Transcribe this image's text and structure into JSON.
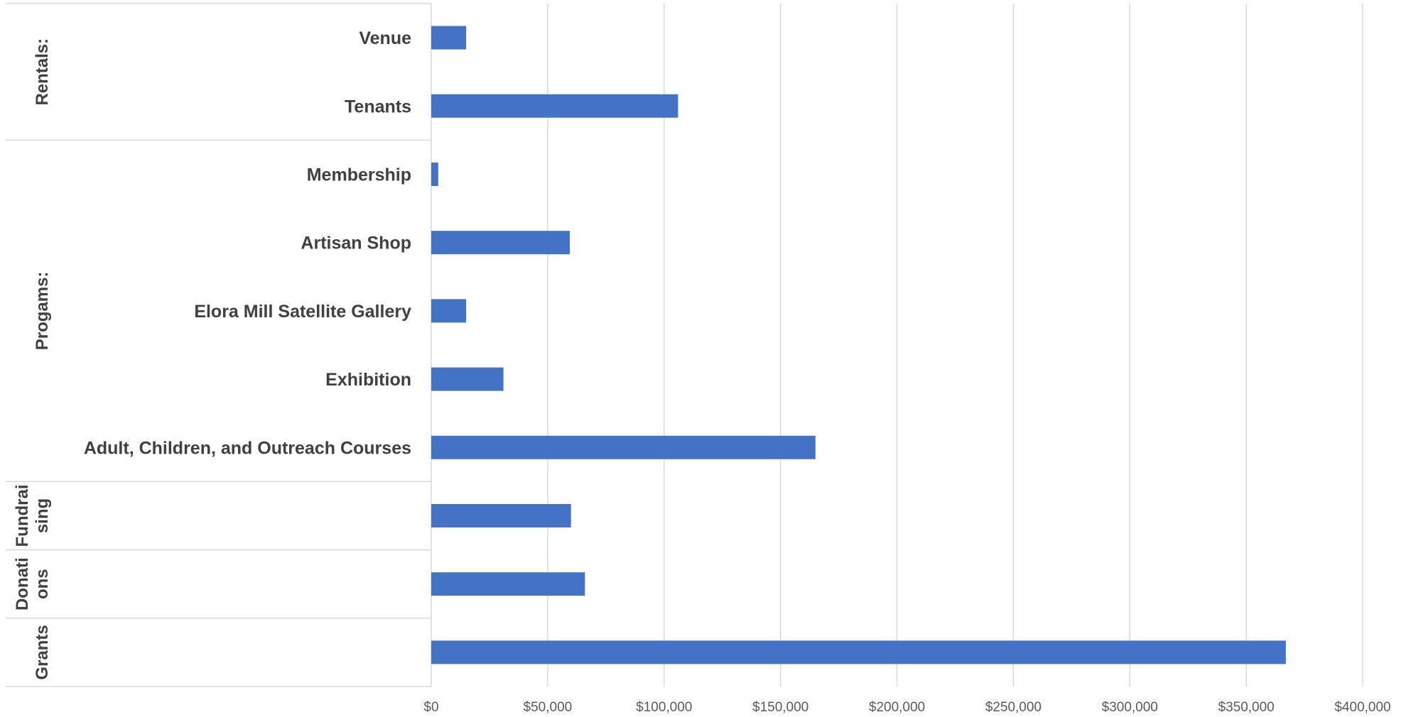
{
  "chart_data": {
    "type": "bar",
    "orientation": "horizontal",
    "title": "",
    "xlabel": "",
    "ylabel": "",
    "xlim": [
      0,
      400000
    ],
    "grid": true,
    "legend": "none",
    "color": "#4472C4",
    "x_ticks": [
      "$0",
      "$50,000",
      "$100,000",
      "$150,000",
      "$200,000",
      "$250,000",
      "$300,000",
      "$350,000",
      "$400,000"
    ],
    "groups": [
      {
        "label": "Rentals:",
        "label_lines": [
          "Rentals:"
        ],
        "items": [
          {
            "label": "Venue",
            "value": 15000
          },
          {
            "label": "Tenants",
            "value": 106000
          }
        ]
      },
      {
        "label": "Progams:",
        "label_lines": [
          "Progams:"
        ],
        "items": [
          {
            "label": "Membership",
            "value": 3000
          },
          {
            "label": "Artisan Shop",
            "value": 59500
          },
          {
            "label": "Elora Mill Satellite Gallery",
            "value": 15000
          },
          {
            "label": "Exhibition",
            "value": 31000
          },
          {
            "label": "Adult, Children, and Outreach Courses",
            "value": 165000
          }
        ]
      },
      {
        "label": "Fundraising",
        "label_lines": [
          "Fundrai",
          "sing"
        ],
        "items": [
          {
            "label": "",
            "value": 60000
          }
        ]
      },
      {
        "label": "Donations",
        "label_lines": [
          "Donati",
          "ons"
        ],
        "items": [
          {
            "label": "",
            "value": 66000
          }
        ]
      },
      {
        "label": "Grants",
        "label_lines": [
          "Grants"
        ],
        "items": [
          {
            "label": "",
            "value": 367000
          }
        ]
      }
    ]
  }
}
